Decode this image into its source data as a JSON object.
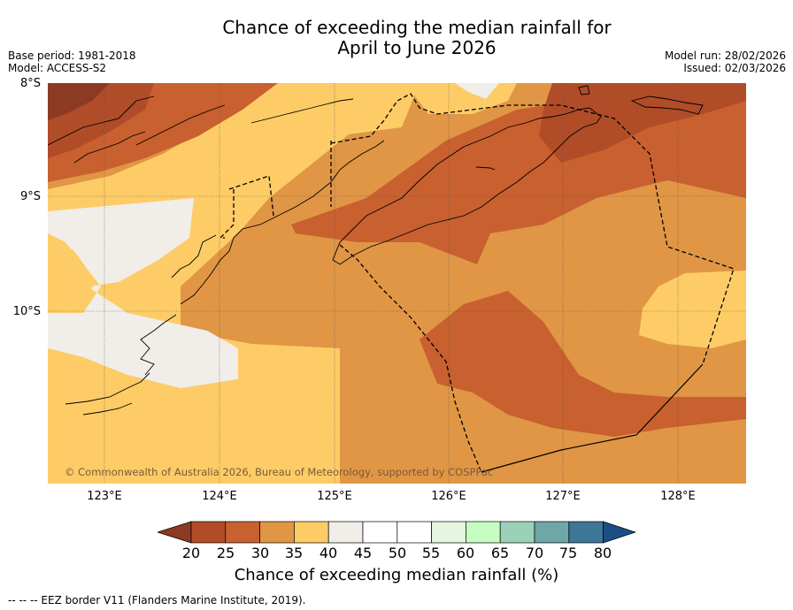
{
  "title": {
    "line1": "Chance of exceeding the median rainfall for",
    "line2": "April to June 2026"
  },
  "meta": {
    "base_period": "Base period: 1981-2018",
    "model": "Model: ACCESS-S2",
    "model_run": "Model run: 28/02/2026",
    "issued": "Issued: 02/03/2026"
  },
  "axes": {
    "lat_labels": [
      "8°S",
      "9°S",
      "10°S"
    ],
    "lon_labels": [
      "123°E",
      "124°E",
      "125°E",
      "126°E",
      "127°E",
      "128°E"
    ],
    "lon_range": [
      122.5,
      128.6
    ],
    "lat_range": [
      -11.5,
      -8.0
    ]
  },
  "copyright": "© Commonwealth of Australia 2026, Bureau of Meteorology, supported by COSPPac",
  "legend": {
    "title": "Chance of exceeding median rainfall (%)",
    "labels": [
      "20",
      "25",
      "30",
      "35",
      "40",
      "45",
      "50",
      "55",
      "60",
      "65",
      "70",
      "75",
      "80"
    ],
    "colors": {
      "under_20": "#8c3a22",
      "c20_25": "#b04c28",
      "c25_30": "#c9602f",
      "c30_35": "#e09645",
      "c35_40": "#fdcc66",
      "c40_45": "#f1ede8",
      "c45_50": "#ffffff",
      "c50_55": "#ffffff",
      "c55_60": "#e5f5e0",
      "c60_65": "#c7fdc3",
      "c65_70": "#9bd1b8",
      "c70_75": "#6fa7a8",
      "c75_80": "#3e7697",
      "over_80": "#1a4f86"
    }
  },
  "footer": "--  --  -- EEZ border V11 (Flanders Marine Institute, 2019)."
}
